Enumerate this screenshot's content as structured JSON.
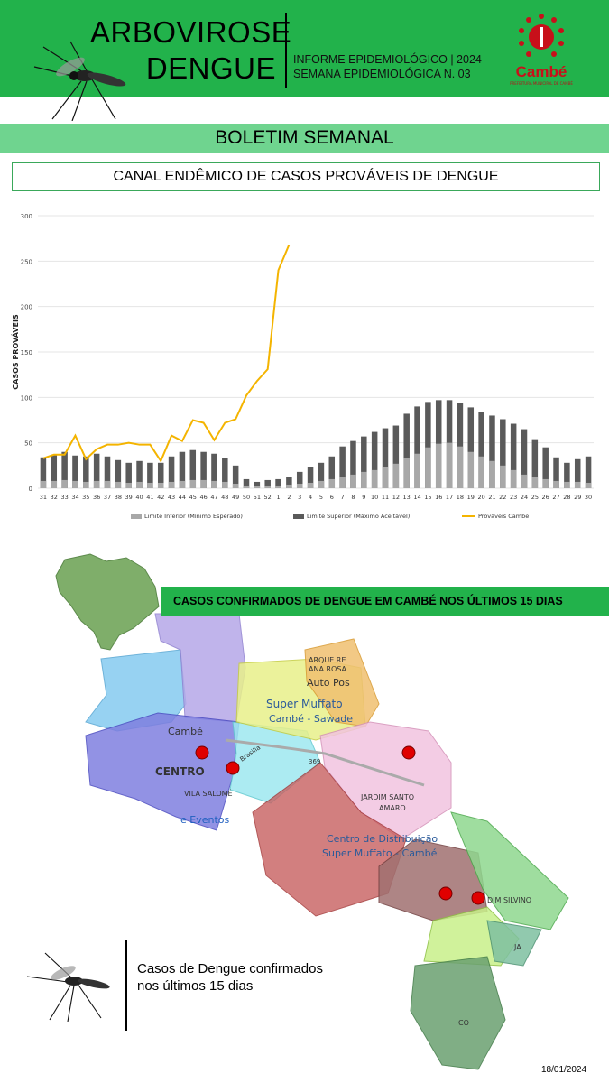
{
  "header": {
    "title_line1": "ARBOVIROSE",
    "title_line2": "DENGUE",
    "info_line1": "INFORME EPIDEMIOLÓGICO | 2024",
    "info_line2": "SEMANA EPIDEMIOLÓGICA  N. 03",
    "logo_text": "Cambé",
    "logo_sub": "PREFEITURA MUNICIPAL DE CAMBÉ",
    "colors": {
      "header_bg": "#22b24b",
      "banner_bg": "#6fd48f",
      "line_cambe": "#f4b400",
      "bar_upper": "#5a5a5a",
      "bar_lower": "#a8a8a8",
      "case_dot": "#e00000"
    }
  },
  "banner": {
    "text": "BOLETIM SEMANAL"
  },
  "subtitle": {
    "text": "CANAL ENDÊMICO DE CASOS PROVÁVEIS DE DENGUE"
  },
  "chart_data": {
    "type": "bar",
    "title": "",
    "xlabel": "",
    "ylabel": "CASOS PROVÁVEIS",
    "ylim": [
      0,
      300
    ],
    "yticks": [
      0,
      50,
      100,
      150,
      200,
      250,
      300
    ],
    "grid": true,
    "legend_position": "bottom",
    "categories": [
      "31",
      "32",
      "33",
      "34",
      "35",
      "36",
      "37",
      "38",
      "39",
      "40",
      "41",
      "42",
      "43",
      "44",
      "45",
      "46",
      "47",
      "48",
      "49",
      "50",
      "51",
      "52",
      "1",
      "2",
      "3",
      "4",
      "5",
      "6",
      "7",
      "8",
      "9",
      "10",
      "11",
      "12",
      "13",
      "14",
      "15",
      "16",
      "17",
      "18",
      "19",
      "20",
      "21",
      "22",
      "23",
      "24",
      "25",
      "26",
      "27",
      "28",
      "29",
      "30"
    ],
    "series": [
      {
        "name": "Limite Inferior (Mínimo Esperado)",
        "kind": "bar",
        "values": [
          8,
          8,
          9,
          8,
          7,
          8,
          8,
          7,
          6,
          7,
          6,
          6,
          7,
          8,
          9,
          9,
          8,
          7,
          5,
          3,
          2,
          3,
          3,
          4,
          5,
          6,
          8,
          10,
          12,
          15,
          18,
          20,
          23,
          27,
          33,
          38,
          45,
          49,
          50,
          46,
          40,
          35,
          30,
          25,
          20,
          15,
          12,
          10,
          8,
          7,
          7,
          6
        ]
      },
      {
        "name": "Limite Superior (Máximo Aceitável)",
        "kind": "bar",
        "values": [
          34,
          37,
          40,
          36,
          35,
          38,
          35,
          31,
          28,
          30,
          28,
          28,
          35,
          40,
          42,
          40,
          38,
          33,
          25,
          10,
          7,
          9,
          10,
          12,
          18,
          23,
          28,
          35,
          46,
          52,
          57,
          62,
          66,
          69,
          82,
          90,
          95,
          97,
          97,
          94,
          89,
          84,
          80,
          76,
          71,
          65,
          54,
          45,
          34,
          28,
          32,
          35
        ]
      },
      {
        "name": "Prováveis Cambé",
        "kind": "line",
        "values": [
          33,
          37,
          37,
          58,
          32,
          43,
          48,
          48,
          50,
          48,
          48,
          30,
          58,
          52,
          75,
          72,
          53,
          72,
          76,
          102,
          null,
          null,
          null,
          null,
          null,
          null,
          null,
          null,
          null,
          null,
          null,
          null,
          null,
          null,
          null,
          null,
          null,
          null,
          null,
          null,
          null,
          null,
          null,
          null,
          null,
          null,
          null,
          null,
          null,
          null,
          null,
          null
        ]
      }
    ],
    "line_extension": {
      "note": "",
      "x": [
        "50",
        "51",
        "52",
        "1",
        "2"
      ],
      "values": [
        102,
        118,
        131,
        240,
        268
      ]
    }
  },
  "map": {
    "banner": "CASOS CONFIRMADOS DE DENGUE EM CAMBÉ NOS ÚLTIMOS 15 DIAS",
    "labels": {
      "cambe": "Cambé",
      "centro": "CENTRO",
      "vila_salome": "VILA SALOMÉ",
      "eventos": "e Eventos",
      "super_muffato": "Super Muffato",
      "super_muffato2": "Cambé - Sawade",
      "arque": "ARQUE RE",
      "ana_rosa": "ANA ROSA",
      "auto_pos": "Auto Pos",
      "jardim": "JARDIM SANTO",
      "amaro": "AMARO",
      "centro_dist": "Centro de Distribuição",
      "centro_dist2": "Super Muffato - Cambé",
      "silvino": "DIM SILVINO",
      "brasilia": "Brasilia",
      "ja": "JA",
      "co": "CO",
      "road": "369"
    },
    "legend": "Casos de Dengue confirmados nos últimos 15 dias",
    "confirmed_cases_shown": 5
  },
  "footer": {
    "date": "18/01/2024"
  }
}
